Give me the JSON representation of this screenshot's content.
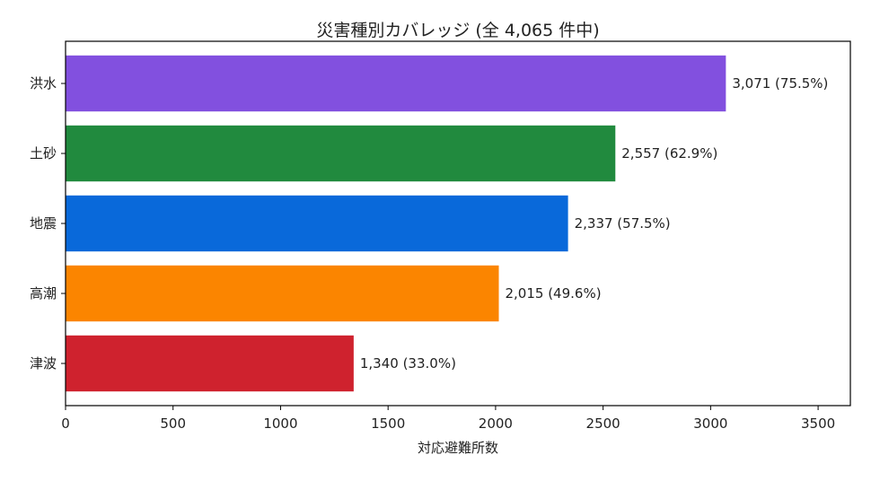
{
  "chart_data": {
    "type": "bar",
    "orientation": "horizontal",
    "title": "災害種別カバレッジ (全 4,065 件中)",
    "xlabel": "対応避難所数",
    "ylabel": "",
    "xlim": [
      0,
      3650
    ],
    "xticks": [
      0,
      500,
      1000,
      1500,
      2000,
      2500,
      3000,
      3500
    ],
    "categories": [
      "洪水",
      "土砂",
      "地震",
      "高潮",
      "津波"
    ],
    "values": [
      3071,
      2557,
      2337,
      2015,
      1340
    ],
    "data_labels": [
      "3,071 (75.5%)",
      "2,557 (62.9%)",
      "2,337 (57.5%)",
      "2,015 (49.6%)",
      "1,340 (33.0%)"
    ],
    "colors": [
      "#8250df",
      "#218a3e",
      "#0969da",
      "#fb8500",
      "#cf222e"
    ],
    "grid": false,
    "legend": "none"
  }
}
